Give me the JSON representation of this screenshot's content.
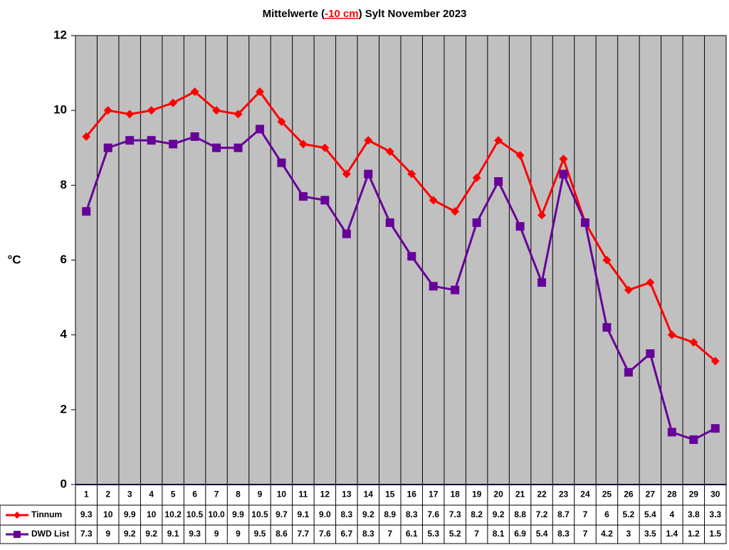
{
  "chart_data": {
    "type": "line",
    "title": {
      "prefix": "Mittelwerte (",
      "highlight": "-10 cm",
      "suffix": ") Sylt November 2023"
    },
    "y_label": "°C",
    "categories": [
      "1",
      "2",
      "3",
      "4",
      "5",
      "6",
      "7",
      "8",
      "9",
      "10",
      "11",
      "12",
      "13",
      "14",
      "15",
      "16",
      "17",
      "18",
      "19",
      "20",
      "21",
      "22",
      "23",
      "24",
      "25",
      "26",
      "27",
      "28",
      "29",
      "30"
    ],
    "series": [
      {
        "name": "Tinnum",
        "color": "#ff0000",
        "marker": "diamond",
        "values": [
          9.3,
          10,
          9.9,
          10,
          10.2,
          10.5,
          10.0,
          9.9,
          10.5,
          9.7,
          9.1,
          9.0,
          8.3,
          9.2,
          8.9,
          8.3,
          7.6,
          7.3,
          8.2,
          9.2,
          8.8,
          7.2,
          8.7,
          7,
          6,
          5.2,
          5.4,
          4,
          3.8,
          3.3
        ],
        "value_labels": [
          "9.3",
          "10",
          "9.9",
          "10",
          "10.2",
          "10.5",
          "10.0",
          "9.9",
          "10.5",
          "9.7",
          "9.1",
          "9.0",
          "8.3",
          "9.2",
          "8.9",
          "8.3",
          "7.6",
          "7.3",
          "8.2",
          "9.2",
          "8.8",
          "7.2",
          "8.7",
          "7",
          "6",
          "5.2",
          "5.4",
          "4",
          "3.8",
          "3.3"
        ]
      },
      {
        "name": "DWD List",
        "color": "#660099",
        "marker": "square",
        "values": [
          7.3,
          9,
          9.2,
          9.2,
          9.1,
          9.3,
          9,
          9,
          9.5,
          8.6,
          7.7,
          7.6,
          6.7,
          8.3,
          7,
          6.1,
          5.3,
          5.2,
          7,
          8.1,
          6.9,
          5.4,
          8.3,
          7,
          4.2,
          3,
          3.5,
          1.4,
          1.2,
          1.5
        ]
      }
    ],
    "ylim": [
      0,
      12
    ],
    "yticks": [
      0,
      2,
      4,
      6,
      8,
      10,
      12
    ],
    "grid": true,
    "data_table": true
  }
}
